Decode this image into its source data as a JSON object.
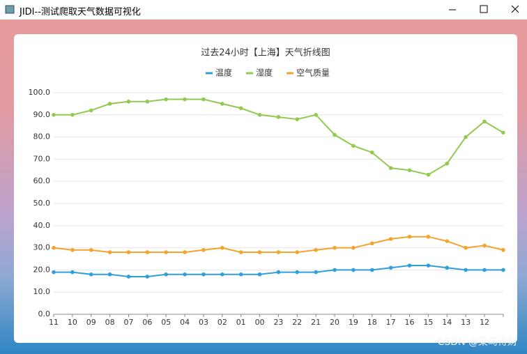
{
  "window": {
    "title": "JIDI--测试爬取天气数据可视化"
  },
  "chart_data": {
    "type": "line",
    "title": "过去24小时【上海】天气折线图",
    "categories": [
      "11",
      "10",
      "09",
      "08",
      "07",
      "06",
      "05",
      "04",
      "03",
      "02",
      "01",
      "00",
      "23",
      "22",
      "21",
      "20",
      "19",
      "18",
      "17",
      "16",
      "15",
      "14",
      "13",
      "12",
      null
    ],
    "series": [
      {
        "name": "温度",
        "color": "#2e9fd8",
        "values": [
          19,
          19,
          18,
          18,
          17,
          17,
          18,
          18,
          18,
          18,
          18,
          18,
          19,
          19,
          19,
          20,
          20,
          20,
          21,
          22,
          22,
          21,
          20,
          20,
          20
        ]
      },
      {
        "name": "湿度",
        "color": "#92c94f",
        "values": [
          90,
          90,
          92,
          95,
          96,
          96,
          97,
          97,
          97,
          95,
          93,
          90,
          89,
          88,
          90,
          81,
          76,
          73,
          66,
          65,
          63,
          68,
          80,
          87,
          82
        ]
      },
      {
        "name": "空气质量",
        "color": "#f4a32d",
        "values": [
          30,
          29,
          29,
          28,
          28,
          28,
          28,
          28,
          29,
          30,
          28,
          28,
          28,
          28,
          29,
          30,
          30,
          32,
          34,
          35,
          35,
          33,
          30,
          31,
          29
        ]
      }
    ],
    "ylim": [
      0,
      100
    ],
    "yticks": [
      {
        "value": 0,
        "label": "0.0"
      },
      {
        "value": 10,
        "label": "10.0"
      },
      {
        "value": 20,
        "label": "20.0"
      },
      {
        "value": 30,
        "label": "30.0"
      },
      {
        "value": 40,
        "label": "40.0"
      },
      {
        "value": 50,
        "label": "50.0"
      },
      {
        "value": 60,
        "label": "60.0"
      },
      {
        "value": 70,
        "label": "70.0"
      },
      {
        "value": 80,
        "label": "80.0"
      },
      {
        "value": 90,
        "label": "90.0"
      },
      {
        "value": 100,
        "label": "100.0"
      }
    ],
    "grid": true
  },
  "watermark": "CSDN @菜鸟得财"
}
